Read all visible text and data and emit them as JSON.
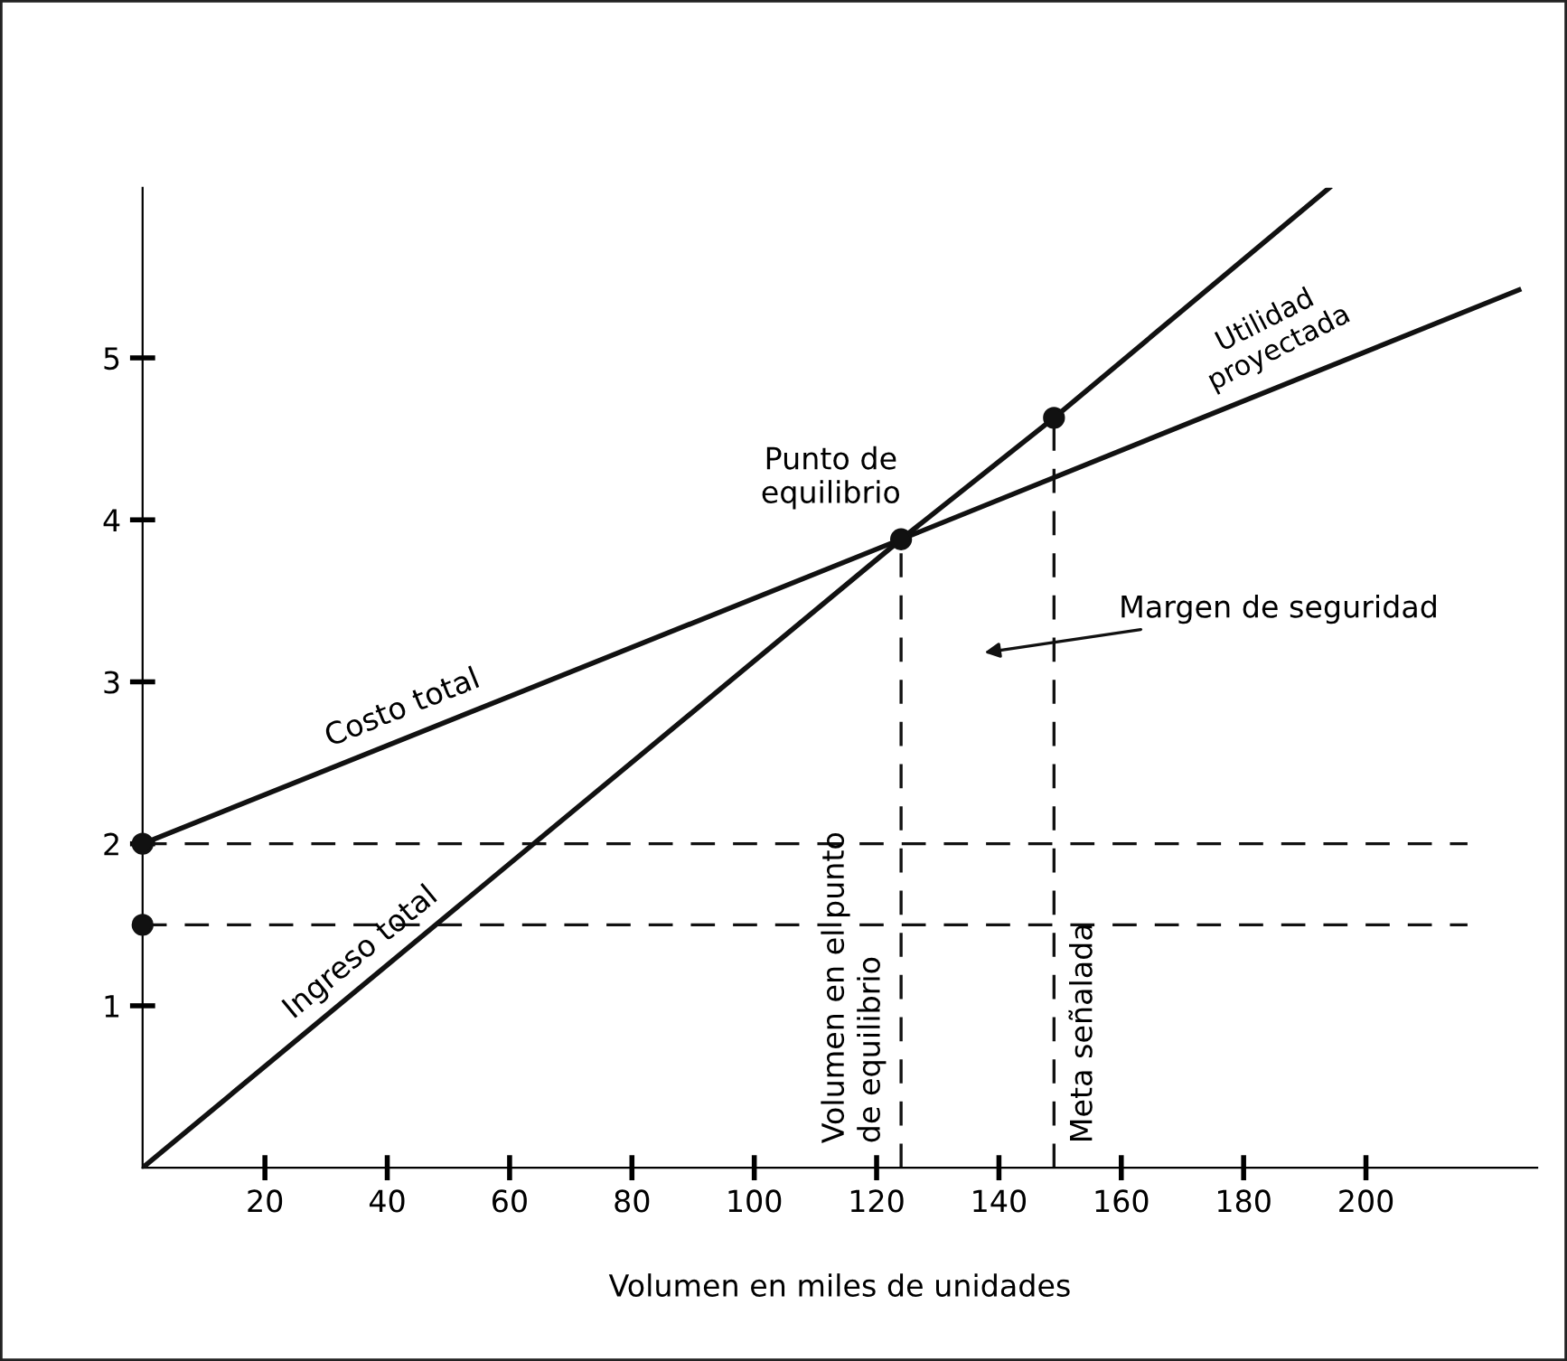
{
  "chart_data": {
    "type": "line",
    "xlabel": "Volumen en miles de unidades",
    "xlim": [
      0,
      228
    ],
    "ylim": [
      0,
      6.05
    ],
    "xticks": [
      20,
      40,
      60,
      80,
      100,
      120,
      140,
      160,
      180,
      200
    ],
    "yticks": [
      1,
      2,
      3,
      4,
      5
    ],
    "series": [
      {
        "name": "Costo total",
        "color": "#111111",
        "x": [
          0,
          124,
          225
        ],
        "values": [
          2,
          3.88,
          5.42
        ]
      },
      {
        "name": "Ingreso total",
        "color": "#111111",
        "x": [
          0,
          124,
          149,
          194
        ],
        "values": [
          0,
          3.88,
          4.63,
          6.05
        ]
      },
      {
        "type": "scatter",
        "marker": "circle",
        "color": "#111111",
        "x": [
          0,
          0,
          124,
          149
        ],
        "values": [
          2,
          1.5,
          3.88,
          4.63
        ]
      }
    ],
    "ref_lines": [
      {
        "axis": "y",
        "value": 2,
        "line_style": "dashed",
        "color": "#111111"
      },
      {
        "axis": "y",
        "value": 1.5,
        "line_style": "dashed",
        "color": "#111111"
      },
      {
        "axis": "x",
        "value": 124,
        "line_style": "dashed",
        "label": "Volumen en el punto\nde equilibrio",
        "color": "#111111"
      },
      {
        "axis": "x",
        "value": 149,
        "line_style": "dashed",
        "label": "Meta señalada",
        "color": "#111111"
      }
    ],
    "annotations": [
      {
        "text": "Punto de\nequilibrio",
        "x": 124,
        "y": 3.88
      },
      "Utilidad\nproyectada",
      "Margen de seguridad"
    ],
    "grid": false,
    "legend": false
  }
}
